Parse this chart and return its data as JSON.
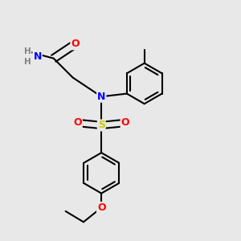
{
  "bg_color": "#e8e8e8",
  "bond_color": "#000000",
  "bond_width": 1.5,
  "atom_colors": {
    "N": "#0000ff",
    "O": "#ff0000",
    "S": "#cccc00",
    "C": "#000000",
    "H": "#808080"
  },
  "font_size": 8.5,
  "fig_size": [
    3.0,
    3.0
  ],
  "dpi": 100
}
